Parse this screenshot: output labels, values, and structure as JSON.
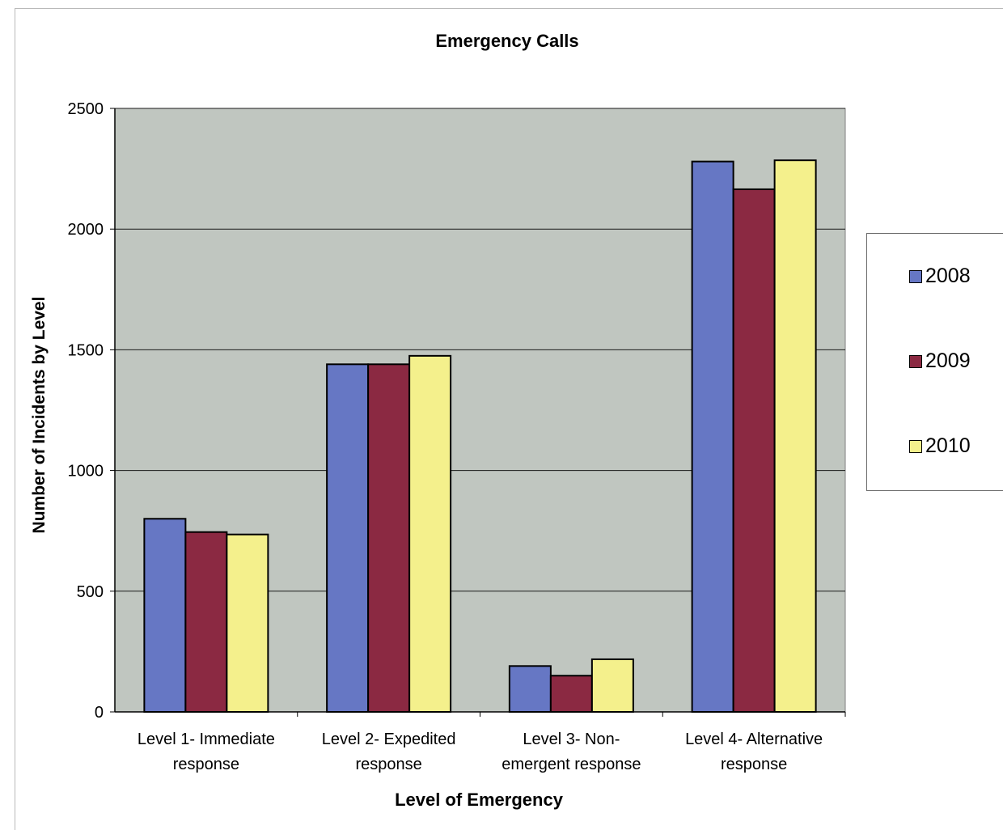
{
  "chart_data": {
    "type": "bar",
    "title": "Emergency Calls",
    "xlabel": "Level of Emergency",
    "ylabel": "Number of Incidents by Level",
    "ylim": [
      0,
      2500
    ],
    "yticks": [
      "0",
      "500",
      "1000",
      "1500",
      "2000",
      "2500"
    ],
    "categories": [
      [
        "Level 1- Immediate",
        "response"
      ],
      [
        "Level 2- Expedited",
        "response"
      ],
      [
        "Level 3- Non-",
        "emergent response"
      ],
      [
        "Level 4- Alternative",
        "response"
      ]
    ],
    "series": [
      {
        "name": "2008",
        "color": "#6677c4",
        "values": [
          800,
          1440,
          190,
          2280
        ]
      },
      {
        "name": "2009",
        "color": "#8b2942",
        "values": [
          745,
          1440,
          150,
          2165
        ]
      },
      {
        "name": "2010",
        "color": "#f4f08c",
        "values": [
          735,
          1475,
          218,
          2285
        ]
      }
    ],
    "grid": true,
    "plot_background": "#c0c6c0",
    "legend_position": "right"
  }
}
